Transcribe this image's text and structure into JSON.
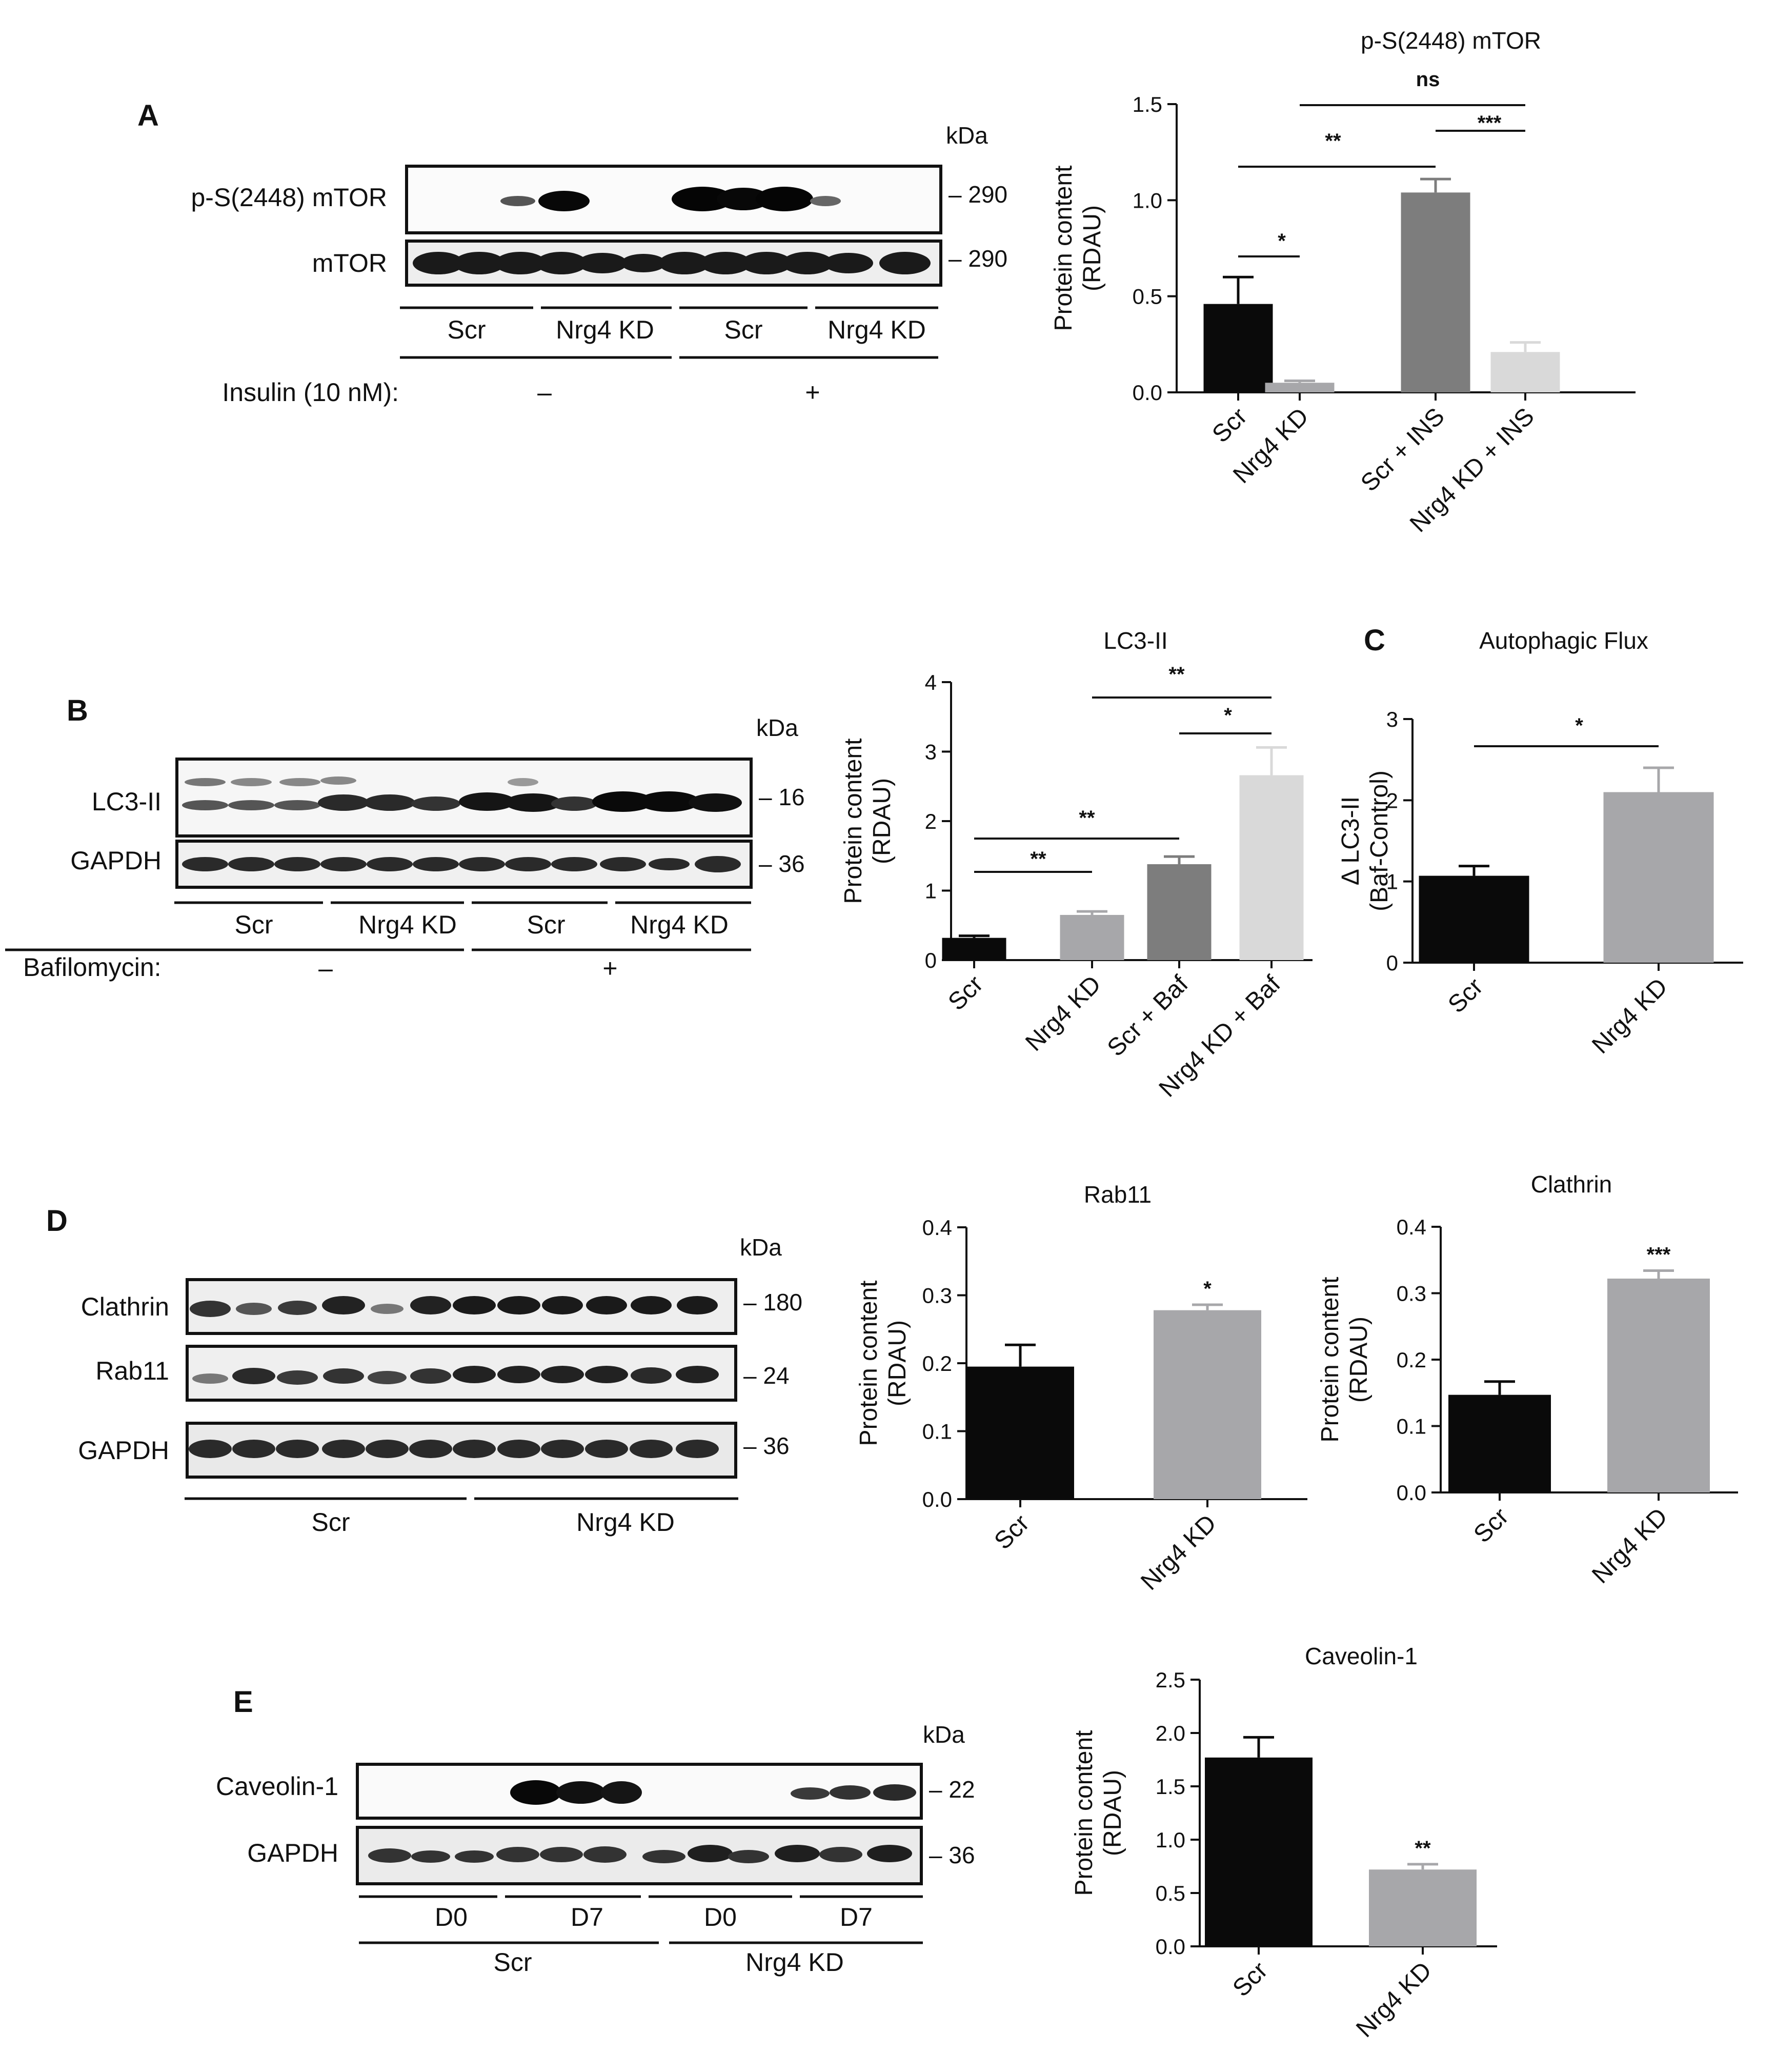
{
  "panels": {
    "A": {
      "letter": "A",
      "blot": {
        "kda_label": "kDa",
        "rows": [
          {
            "label": "p-S(2448) mTOR",
            "kda": "– 290"
          },
          {
            "label": "mTOR",
            "kda": "– 290"
          }
        ],
        "groups": [
          "Scr",
          "Nrg4 KD",
          "Scr",
          "Nrg4 KD"
        ],
        "treatment_label": "Insulin (10 nM):",
        "treatment_levels": [
          "–",
          "+"
        ]
      }
    },
    "B": {
      "letter": "B",
      "blot": {
        "kda_label": "kDa",
        "rows": [
          {
            "label": "LC3-II",
            "kda": "– 16"
          },
          {
            "label": "GAPDH",
            "kda": "– 36"
          }
        ],
        "groups": [
          "Scr",
          "Nrg4 KD",
          "Scr",
          "Nrg4 KD"
        ],
        "treatment_label": "Bafilomycin:",
        "treatment_levels": [
          "–",
          "+"
        ]
      }
    },
    "C": {
      "letter": "C"
    },
    "D": {
      "letter": "D",
      "blot": {
        "kda_label": "kDa",
        "rows": [
          {
            "label": "Clathrin",
            "kda": "– 180"
          },
          {
            "label": "Rab11",
            "kda": "– 24"
          },
          {
            "label": "GAPDH",
            "kda": "– 36"
          }
        ],
        "groups": [
          "Scr",
          "Nrg4 KD"
        ]
      }
    },
    "E": {
      "letter": "E",
      "blot": {
        "kda_label": "kDa",
        "rows": [
          {
            "label": "Caveolin-1",
            "kda": "– 22"
          },
          {
            "label": "GAPDH",
            "kda": "– 36"
          }
        ],
        "subgroups": [
          "D0",
          "D7",
          "D0",
          "D7"
        ],
        "groups": [
          "Scr",
          "Nrg4 KD"
        ]
      }
    }
  },
  "chart_data": [
    {
      "id": "mtor",
      "type": "bar",
      "title": "p-S(2448) mTOR",
      "ylabel": [
        "Protein content",
        "(RDAU)"
      ],
      "categories": [
        "Scr",
        "Nrg4 KD",
        "Scr + INS",
        "Nrg4 KD + INS"
      ],
      "values": [
        0.46,
        0.05,
        1.04,
        0.21
      ],
      "errors": [
        0.14,
        0.01,
        0.07,
        0.05
      ],
      "colors": [
        "#0a0a0a",
        "#a7a7aa",
        "#7d7d7d",
        "#d9d9d9"
      ],
      "ylim": [
        0,
        1.5
      ],
      "yticks": [
        "0.0",
        "0.5",
        "1.0",
        "1.5"
      ],
      "significance": [
        {
          "from": 0,
          "to": 1,
          "label": "*"
        },
        {
          "from": 0,
          "to": 2,
          "label": "**"
        },
        {
          "from": 2,
          "to": 3,
          "label": "***"
        },
        {
          "from": 1,
          "to": 3,
          "label": "ns"
        }
      ]
    },
    {
      "id": "lc3",
      "type": "bar",
      "title": "LC3-II",
      "ylabel": [
        "Protein content",
        "(RDAU)"
      ],
      "categories": [
        "Scr",
        "Nrg4 KD",
        "Scr + Baf",
        "Nrg4 KD + Baf"
      ],
      "values": [
        0.32,
        0.65,
        1.38,
        2.66
      ],
      "errors": [
        0.03,
        0.05,
        0.11,
        0.4
      ],
      "colors": [
        "#0a0a0a",
        "#a7a7aa",
        "#7d7d7d",
        "#d9d9d9"
      ],
      "ylim": [
        0,
        4
      ],
      "yticks": [
        "0",
        "1",
        "2",
        "3",
        "4"
      ],
      "significance": [
        {
          "from": 0,
          "to": 1,
          "label": "**"
        },
        {
          "from": 0,
          "to": 2,
          "label": "**"
        },
        {
          "from": 2,
          "to": 3,
          "label": "*"
        },
        {
          "from": 1,
          "to": 3,
          "label": "**"
        }
      ]
    },
    {
      "id": "flux",
      "type": "bar",
      "title": "Autophagic Flux",
      "ylabel": [
        "Δ LC3-II",
        "(Baf-Control)"
      ],
      "categories": [
        "Scr",
        "Nrg4 KD"
      ],
      "values": [
        1.07,
        2.1
      ],
      "errors": [
        0.12,
        0.3
      ],
      "colors": [
        "#0a0a0a",
        "#a7a7aa"
      ],
      "ylim": [
        0,
        3
      ],
      "yticks": [
        "0",
        "1",
        "2",
        "3"
      ],
      "significance": [
        {
          "from": 0,
          "to": 1,
          "label": "*"
        }
      ]
    },
    {
      "id": "rab11",
      "type": "bar",
      "title": "Rab11",
      "ylabel": [
        "Protein content",
        "(RDAU)"
      ],
      "categories": [
        "Scr",
        "Nrg4 KD"
      ],
      "values": [
        0.195,
        0.278
      ],
      "errors": [
        0.032,
        0.008
      ],
      "colors": [
        "#0a0a0a",
        "#a7a7aa"
      ],
      "ylim": [
        0,
        0.4
      ],
      "yticks": [
        "0.0",
        "0.1",
        "0.2",
        "0.3",
        "0.4"
      ],
      "bar_labels": [
        "",
        "*"
      ]
    },
    {
      "id": "clathrin",
      "type": "bar",
      "title": "Clathrin",
      "ylabel": [
        "Protein content",
        "(RDAU)"
      ],
      "categories": [
        "Scr",
        "Nrg4 KD"
      ],
      "values": [
        0.147,
        0.322
      ],
      "errors": [
        0.02,
        0.012
      ],
      "colors": [
        "#0a0a0a",
        "#a7a7aa"
      ],
      "ylim": [
        0,
        0.4
      ],
      "yticks": [
        "0.0",
        "0.1",
        "0.2",
        "0.3",
        "0.4"
      ],
      "bar_labels": [
        "",
        "***"
      ]
    },
    {
      "id": "caveolin",
      "type": "bar",
      "title": "Caveolin-1",
      "ylabel": [
        "Protein content",
        "(RDAU)"
      ],
      "categories": [
        "Scr",
        "Nrg4 KD"
      ],
      "values": [
        1.77,
        0.72
      ],
      "errors": [
        0.19,
        0.05
      ],
      "colors": [
        "#0a0a0a",
        "#a7a7aa"
      ],
      "ylim": [
        0,
        2.5
      ],
      "yticks": [
        "0.0",
        "0.5",
        "1.0",
        "1.5",
        "2.0",
        "2.5"
      ],
      "bar_labels": [
        "",
        "**"
      ]
    }
  ]
}
